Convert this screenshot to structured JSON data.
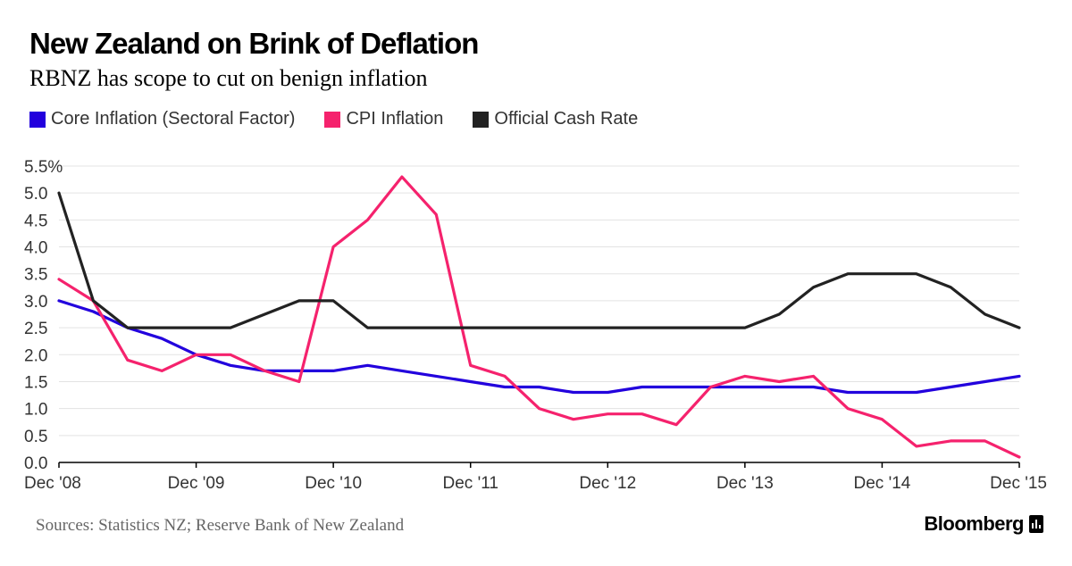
{
  "header": {
    "title": "New Zealand on Brink of Deflation",
    "subtitle": "RBNZ has scope to cut on benign inflation"
  },
  "footer": {
    "source": "Sources: Statistics NZ; Reserve Bank of New Zealand",
    "brand": "Bloomberg"
  },
  "chart_data": {
    "type": "line",
    "title": "New Zealand on Brink of Deflation",
    "subtitle": "RBNZ has scope to cut on benign inflation",
    "xlabel": "",
    "ylabel": "",
    "x": [
      "Dec '08",
      "Mar '09",
      "Jun '09",
      "Sep '09",
      "Dec '09",
      "Mar '10",
      "Jun '10",
      "Sep '10",
      "Dec '10",
      "Mar '11",
      "Jun '11",
      "Sep '11",
      "Dec '11",
      "Mar '12",
      "Jun '12",
      "Sep '12",
      "Dec '12",
      "Mar '13",
      "Jun '13",
      "Sep '13",
      "Dec '13",
      "Mar '14",
      "Jun '14",
      "Sep '14",
      "Dec '14",
      "Mar '15",
      "Jun '15",
      "Sep '15",
      "Dec '15"
    ],
    "x_tick_labels": [
      "Dec '08",
      "Dec '09",
      "Dec '10",
      "Dec '11",
      "Dec '12",
      "Dec '13",
      "Dec '14",
      "Dec '15"
    ],
    "y_tick_labels": [
      "0.0",
      "0.5",
      "1.0",
      "1.5",
      "2.0",
      "2.5",
      "3.0",
      "3.5",
      "4.0",
      "4.5",
      "5.0",
      "5.5%"
    ],
    "ylim": [
      0,
      5.5
    ],
    "grid": "horizontal",
    "legend_position": "top-left",
    "series": [
      {
        "name": "Core Inflation (Sectoral Factor)",
        "color": "#2200dd",
        "values": [
          3.0,
          2.8,
          2.5,
          2.3,
          2.0,
          1.8,
          1.7,
          1.7,
          1.7,
          1.8,
          1.7,
          1.6,
          1.5,
          1.4,
          1.4,
          1.3,
          1.3,
          1.4,
          1.4,
          1.4,
          1.4,
          1.4,
          1.4,
          1.3,
          1.3,
          1.3,
          1.4,
          1.5,
          1.6
        ]
      },
      {
        "name": "CPI Inflation",
        "color": "#f5226d",
        "values": [
          3.4,
          3.0,
          1.9,
          1.7,
          2.0,
          2.0,
          1.7,
          1.5,
          4.0,
          4.5,
          5.3,
          4.6,
          1.8,
          1.6,
          1.0,
          0.8,
          0.9,
          0.9,
          0.7,
          1.4,
          1.6,
          1.5,
          1.6,
          1.0,
          0.8,
          0.3,
          0.4,
          0.4,
          0.1
        ]
      },
      {
        "name": "Official Cash Rate",
        "color": "#222222",
        "values": [
          5.0,
          3.0,
          2.5,
          2.5,
          2.5,
          2.5,
          2.75,
          3.0,
          3.0,
          2.5,
          2.5,
          2.5,
          2.5,
          2.5,
          2.5,
          2.5,
          2.5,
          2.5,
          2.5,
          2.5,
          2.5,
          2.75,
          3.25,
          3.5,
          3.5,
          3.5,
          3.25,
          2.75,
          2.5
        ]
      }
    ]
  }
}
